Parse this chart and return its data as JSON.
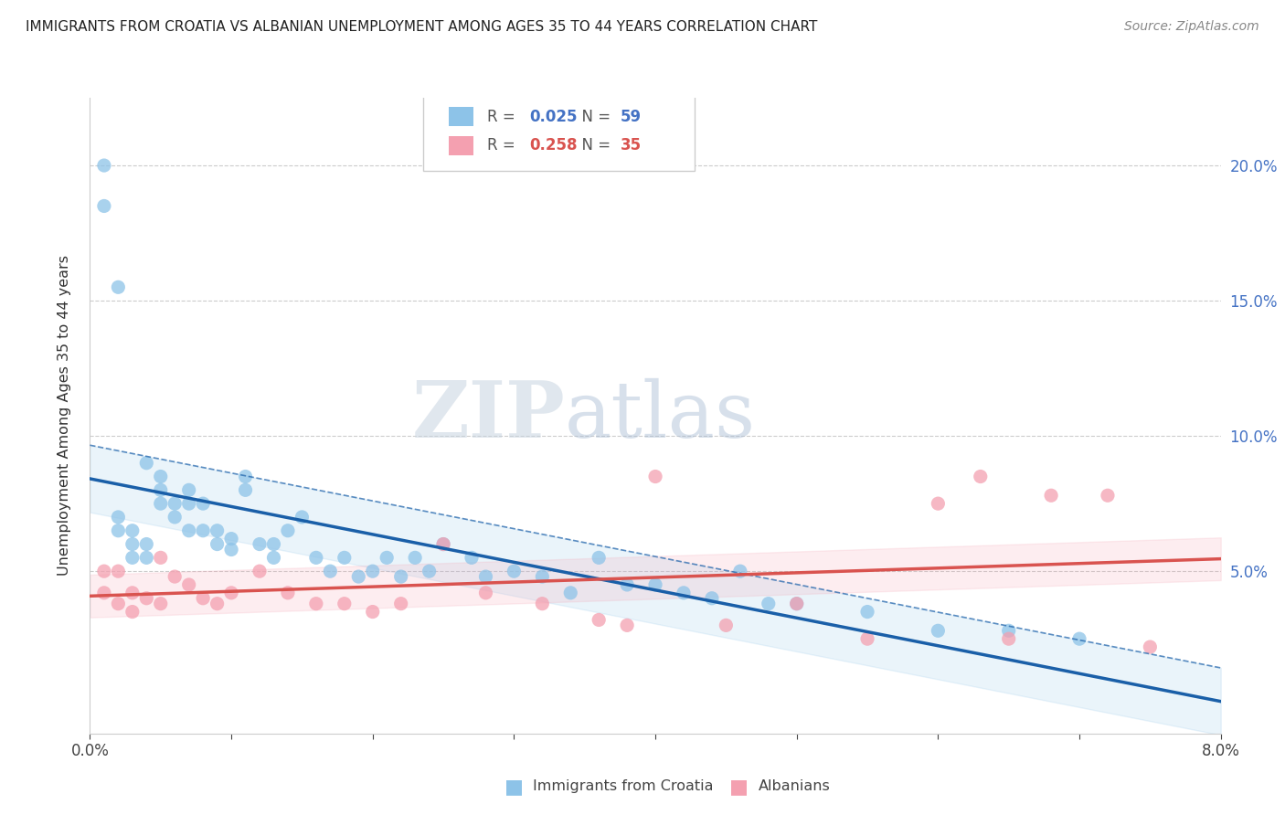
{
  "title": "IMMIGRANTS FROM CROATIA VS ALBANIAN UNEMPLOYMENT AMONG AGES 35 TO 44 YEARS CORRELATION CHART",
  "source": "Source: ZipAtlas.com",
  "ylabel": "Unemployment Among Ages 35 to 44 years",
  "r_croatia": 0.025,
  "n_croatia": 59,
  "r_albanian": 0.258,
  "n_albanian": 35,
  "xlim": [
    0.0,
    0.08
  ],
  "ylim": [
    -0.01,
    0.225
  ],
  "xticks": [
    0.0,
    0.01,
    0.02,
    0.03,
    0.04,
    0.05,
    0.06,
    0.07,
    0.08
  ],
  "yticks_right": [
    0.05,
    0.1,
    0.15,
    0.2
  ],
  "ytick_labels_right": [
    "5.0%",
    "10.0%",
    "15.0%",
    "20.0%"
  ],
  "color_croatia": "#8dc3e8",
  "color_albanian": "#f4a0b0",
  "line_color_croatia": "#1a5fa8",
  "line_color_albanian": "#d9534f",
  "watermark_zip": "ZIP",
  "watermark_atlas": "atlas",
  "croatia_x": [
    0.001,
    0.001,
    0.002,
    0.002,
    0.002,
    0.003,
    0.003,
    0.003,
    0.004,
    0.004,
    0.004,
    0.005,
    0.005,
    0.005,
    0.006,
    0.006,
    0.007,
    0.007,
    0.007,
    0.008,
    0.008,
    0.009,
    0.009,
    0.01,
    0.01,
    0.011,
    0.011,
    0.012,
    0.013,
    0.013,
    0.014,
    0.015,
    0.016,
    0.017,
    0.018,
    0.019,
    0.02,
    0.021,
    0.022,
    0.023,
    0.024,
    0.025,
    0.027,
    0.028,
    0.03,
    0.032,
    0.034,
    0.036,
    0.038,
    0.04,
    0.042,
    0.044,
    0.046,
    0.048,
    0.05,
    0.055,
    0.06,
    0.065,
    0.07
  ],
  "croatia_y": [
    0.2,
    0.185,
    0.155,
    0.07,
    0.065,
    0.06,
    0.065,
    0.055,
    0.06,
    0.055,
    0.09,
    0.085,
    0.08,
    0.075,
    0.075,
    0.07,
    0.08,
    0.075,
    0.065,
    0.075,
    0.065,
    0.065,
    0.06,
    0.062,
    0.058,
    0.085,
    0.08,
    0.06,
    0.06,
    0.055,
    0.065,
    0.07,
    0.055,
    0.05,
    0.055,
    0.048,
    0.05,
    0.055,
    0.048,
    0.055,
    0.05,
    0.06,
    0.055,
    0.048,
    0.05,
    0.048,
    0.042,
    0.055,
    0.045,
    0.045,
    0.042,
    0.04,
    0.05,
    0.038,
    0.038,
    0.035,
    0.028,
    0.028,
    0.025
  ],
  "albanian_x": [
    0.001,
    0.001,
    0.002,
    0.002,
    0.003,
    0.003,
    0.004,
    0.005,
    0.005,
    0.006,
    0.007,
    0.008,
    0.009,
    0.01,
    0.012,
    0.014,
    0.016,
    0.018,
    0.02,
    0.022,
    0.025,
    0.028,
    0.032,
    0.036,
    0.038,
    0.04,
    0.045,
    0.05,
    0.055,
    0.06,
    0.063,
    0.065,
    0.068,
    0.072,
    0.075
  ],
  "albanian_y": [
    0.05,
    0.042,
    0.05,
    0.038,
    0.042,
    0.035,
    0.04,
    0.038,
    0.055,
    0.048,
    0.045,
    0.04,
    0.038,
    0.042,
    0.05,
    0.042,
    0.038,
    0.038,
    0.035,
    0.038,
    0.06,
    0.042,
    0.038,
    0.032,
    0.03,
    0.085,
    0.03,
    0.038,
    0.025,
    0.075,
    0.085,
    0.025,
    0.078,
    0.078,
    0.022
  ]
}
